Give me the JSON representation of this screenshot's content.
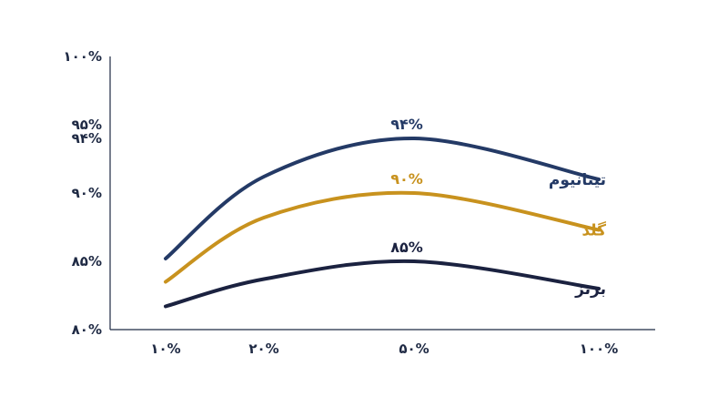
{
  "chart_data": {
    "type": "line",
    "x": [
      "۱۰%",
      "۲۰%",
      "۵۰%",
      "۱۰۰%"
    ],
    "y_ticks": [
      "۸۰%",
      "۸۵%",
      "۹۰%",
      "۹۴%",
      "۹۵%",
      "۱۰۰%"
    ],
    "y_tick_values": [
      80,
      85,
      90,
      94,
      95,
      100
    ],
    "ylim": [
      80,
      100
    ],
    "grid": false,
    "series": [
      {
        "name": "تیتانیوم",
        "color": "#243a66",
        "values": [
          85.2,
          91.2,
          94,
          91.0
        ],
        "peak_label": "۹۴%"
      },
      {
        "name": "گلد",
        "color": "#c8921e",
        "values": [
          83.5,
          88.2,
          90,
          87.3
        ],
        "peak_label": "۹۰%"
      },
      {
        "name": "برنز",
        "color": "#1b2240",
        "values": [
          81.7,
          83.7,
          85,
          83.0
        ],
        "peak_label": "۸۵%"
      }
    ]
  }
}
